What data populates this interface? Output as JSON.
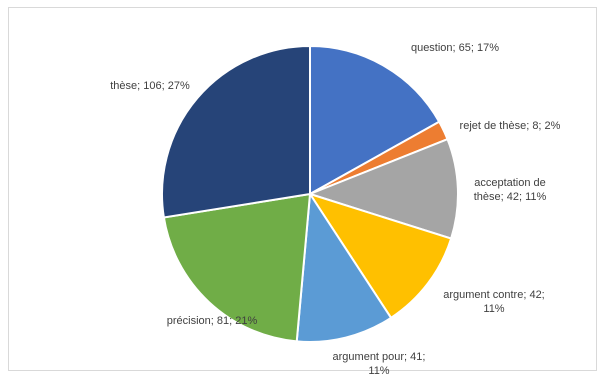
{
  "chart_data": {
    "type": "pie",
    "title": "",
    "slices": [
      {
        "label": "question",
        "value": 65,
        "percent": "17%",
        "color": "#4472C4",
        "label_lines": [
          "question; 65; 17%"
        ]
      },
      {
        "label": "rejet de thèse",
        "value": 8,
        "percent": "2%",
        "color": "#ED7D31",
        "label_lines": [
          "rejet de thèse; 8; 2%"
        ]
      },
      {
        "label": "acceptation de thèse",
        "value": 42,
        "percent": "11%",
        "color": "#A5A5A5",
        "label_lines": [
          "acceptation de",
          "thèse; 42; 11%"
        ]
      },
      {
        "label": "argument contre",
        "value": 42,
        "percent": "11%",
        "color": "#FFC000",
        "label_lines": [
          "argument contre; 42;",
          "11%"
        ]
      },
      {
        "label": "argument pour",
        "value": 41,
        "percent": "11%",
        "color": "#5B9BD5",
        "label_lines": [
          "argument pour; 41;",
          "11%"
        ]
      },
      {
        "label": "précision",
        "value": 81,
        "percent": "21%",
        "color": "#70AD47",
        "label_lines": [
          "précision; 81; 21%"
        ]
      },
      {
        "label": "thèse",
        "value": 106,
        "percent": "27%",
        "color": "#264478",
        "label_lines": [
          "thèse; 106; 27%"
        ]
      }
    ],
    "legend": "none",
    "start_angle_deg": 0,
    "direction": "clockwise"
  }
}
